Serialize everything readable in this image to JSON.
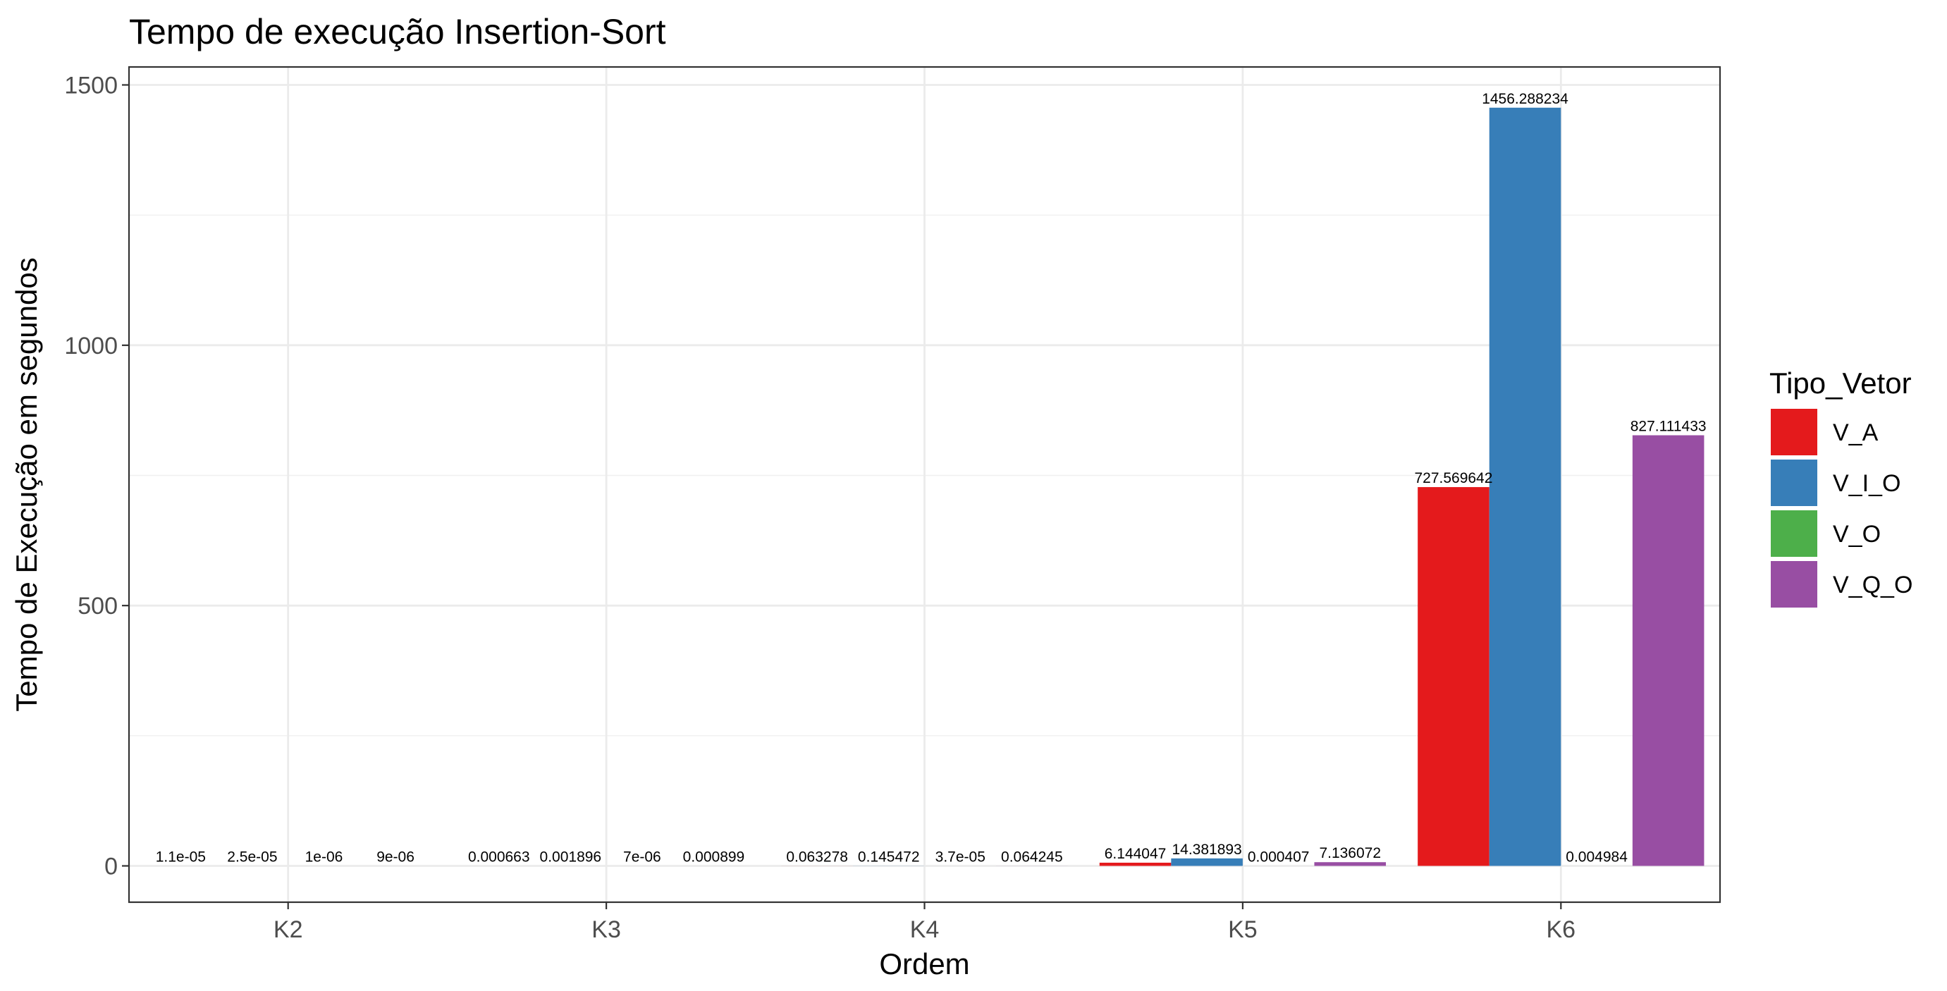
{
  "chart_data": {
    "type": "bar",
    "title": "Tempo de execução Insertion-Sort",
    "xlabel": "Ordem",
    "ylabel": "Tempo de Execução em segundos",
    "categories": [
      "K2",
      "K3",
      "K4",
      "K5",
      "K6"
    ],
    "ylim": [
      -70,
      1545
    ],
    "yticks": [
      0,
      500,
      1000,
      1500
    ],
    "grid": true,
    "legend": {
      "title": "Tipo_Vetor",
      "placement": "right"
    },
    "series": [
      {
        "name": "V_A",
        "color": "#E41A1C",
        "values": [
          1.1e-05,
          0.000663,
          0.063278,
          6.144047,
          727.569642
        ],
        "labels": [
          "1.1e-05",
          "0.000663",
          "0.063278",
          "6.144047",
          "727.569642"
        ]
      },
      {
        "name": "V_I_O",
        "color": "#377EB8",
        "values": [
          2.5e-05,
          0.001896,
          0.145472,
          14.381893,
          1456.288234
        ],
        "labels": [
          "2.5e-05",
          "0.001896",
          "0.145472",
          "14.381893",
          "1456.288234"
        ]
      },
      {
        "name": "V_O",
        "color": "#4DAF4A",
        "values": [
          1e-06,
          7e-06,
          3.7e-05,
          0.000407,
          0.004984
        ],
        "labels": [
          "1e-06",
          "7e-06",
          "3.7e-05",
          "0.000407",
          "0.004984"
        ]
      },
      {
        "name": "V_Q_O",
        "color": "#984EA3",
        "values": [
          9e-06,
          0.000899,
          0.064245,
          7.136072,
          827.111433
        ],
        "labels": [
          "9e-06",
          "0.000899",
          "0.064245",
          "7.136072",
          "827.111433"
        ]
      }
    ]
  }
}
